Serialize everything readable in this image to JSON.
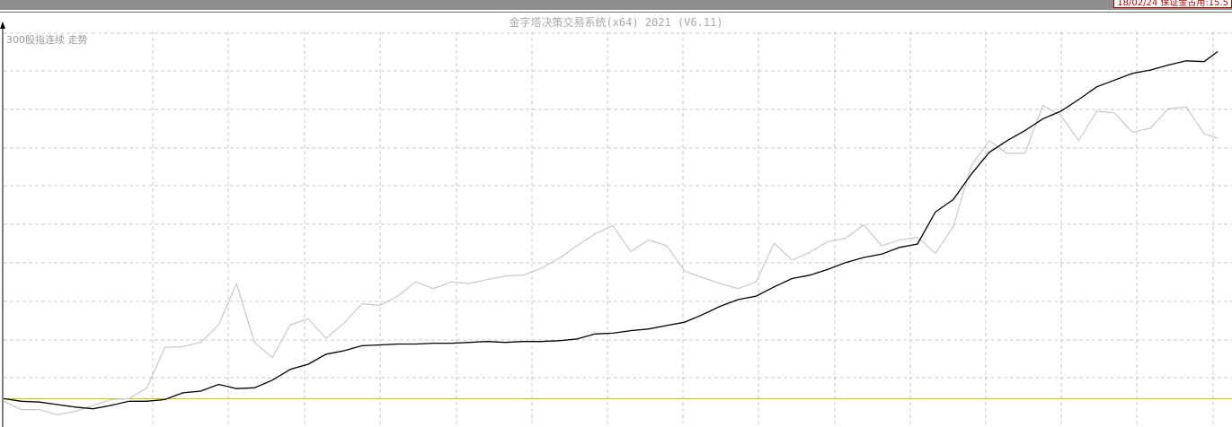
{
  "header": {
    "status_text": "18/02/24 保证金占用:15.5"
  },
  "app_title": "金字塔决策交易系统(x64) 2021 (V6.11)",
  "colors": {
    "index_line": "#c8c8c8",
    "equity_line": "#000000",
    "baseline": "#d4c400",
    "grid": "#c8c8c8",
    "status": "#c00000"
  },
  "chart_data": {
    "type": "line",
    "title": "300股指连续 走势",
    "xlabel": "",
    "ylabel": "",
    "grid": true,
    "x_ticks": [],
    "y_ticks": [],
    "x": [
      0,
      20,
      40,
      60,
      80,
      100,
      120,
      140,
      160,
      180,
      200,
      220,
      240,
      260,
      280,
      300,
      320,
      340,
      360,
      380,
      400,
      420,
      440,
      460,
      480,
      500,
      520,
      540,
      560,
      580,
      600,
      620,
      640,
      660,
      680,
      700,
      720,
      740,
      760,
      780,
      800,
      820,
      840,
      860,
      880,
      900,
      920,
      940,
      960,
      980,
      1000,
      1020,
      1040,
      1060,
      1080,
      1100,
      1120,
      1140,
      1160,
      1180,
      1200,
      1220,
      1240,
      1260,
      1280,
      1300,
      1320,
      1340,
      1355
    ],
    "series": [
      {
        "values": [
          20,
          10,
          10,
          4,
          8,
          15,
          22,
          23,
          36,
          84,
          85,
          90,
          111,
          160,
          90,
          72,
          111,
          118,
          95,
          113,
          136,
          134,
          145,
          162,
          154,
          162,
          160,
          165,
          169,
          170,
          178,
          190,
          205,
          219,
          229,
          198,
          212,
          205,
          175,
          167,
          160,
          154,
          162,
          208,
          188,
          197,
          210,
          214,
          230,
          205,
          212,
          215,
          196,
          228,
          300,
          330,
          315,
          315,
          372,
          360,
          330,
          365,
          363,
          340,
          345,
          368,
          370,
          338,
          333
        ]
      },
      {
        "values": [
          23,
          20,
          19,
          16,
          13,
          11,
          15,
          20,
          20,
          22,
          30,
          32,
          40,
          35,
          36,
          45,
          58,
          64,
          76,
          80,
          86,
          87,
          88,
          88,
          89,
          89,
          90,
          91,
          90,
          91,
          91,
          92,
          94,
          100,
          101,
          104,
          106,
          110,
          114,
          123,
          133,
          141,
          145,
          156,
          166,
          170,
          177,
          185,
          191,
          195,
          203,
          207,
          245,
          260,
          290,
          316,
          330,
          342,
          356,
          365,
          379,
          394,
          402,
          410,
          414,
          420,
          425,
          424,
          436
        ]
      }
    ],
    "ylim": [
      0,
      460
    ],
    "baseline": 23
  }
}
